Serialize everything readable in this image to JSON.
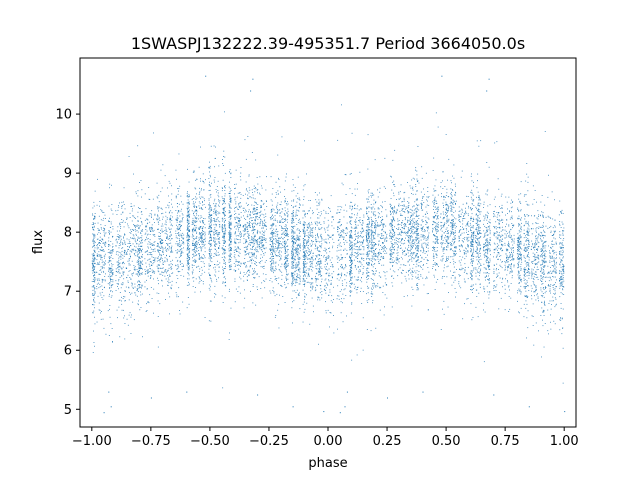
{
  "chart_data": {
    "type": "scatter",
    "title": "1SWASPJ132222.39-495351.7 Period 3664050.0s",
    "xlabel": "phase",
    "ylabel": "flux",
    "xlim": [
      -1.05,
      1.05
    ],
    "ylim": [
      4.7,
      10.95
    ],
    "x_ticks": [
      -1.0,
      -0.75,
      -0.5,
      -0.25,
      0.0,
      0.25,
      0.5,
      0.75,
      1.0
    ],
    "x_tick_labels": [
      "−1.00",
      "−0.75",
      "−0.50",
      "−0.25",
      "0.00",
      "0.25",
      "0.50",
      "0.75",
      "1.00"
    ],
    "y_ticks": [
      5,
      6,
      7,
      8,
      9,
      10
    ],
    "y_tick_labels": [
      "5",
      "6",
      "7",
      "8",
      "9",
      "10"
    ],
    "grid": false,
    "legend": "none",
    "series_color": "#1f77b4",
    "x_range": [
      -1.0,
      1.0
    ],
    "symmetric_about_phase_zero": true,
    "profile": [
      {
        "phase": 0.0,
        "median_flux": 7.55,
        "spread": 0.55
      },
      {
        "phase": 0.1,
        "median_flux": 7.7,
        "spread": 0.5
      },
      {
        "phase": 0.2,
        "median_flux": 7.85,
        "spread": 0.5
      },
      {
        "phase": 0.3,
        "median_flux": 7.95,
        "spread": 0.5
      },
      {
        "phase": 0.4,
        "median_flux": 8.0,
        "spread": 0.5
      },
      {
        "phase": 0.5,
        "median_flux": 8.05,
        "spread": 0.55
      },
      {
        "phase": 0.6,
        "median_flux": 7.9,
        "spread": 0.5
      },
      {
        "phase": 0.7,
        "median_flux": 7.8,
        "spread": 0.5
      },
      {
        "phase": 0.8,
        "median_flux": 7.65,
        "spread": 0.55
      },
      {
        "phase": 0.9,
        "median_flux": 7.55,
        "spread": 0.55
      },
      {
        "phase": 1.0,
        "median_flux": 7.5,
        "spread": 0.55
      }
    ],
    "outliers": [
      {
        "x": -0.52,
        "y": 10.65
      },
      {
        "x": 0.48,
        "y": 10.65
      },
      {
        "x": -0.32,
        "y": 10.6
      },
      {
        "x": -0.33,
        "y": 10.4
      },
      {
        "x": 0.68,
        "y": 10.6
      },
      {
        "x": 0.67,
        "y": 10.4
      },
      {
        "x": -0.93,
        "y": 5.3
      },
      {
        "x": -0.92,
        "y": 5.05
      },
      {
        "x": 0.08,
        "y": 5.3
      },
      {
        "x": 0.07,
        "y": 5.05
      },
      {
        "x": -0.95,
        "y": 4.95
      },
      {
        "x": 0.05,
        "y": 4.95
      },
      {
        "x": -0.15,
        "y": 5.05
      },
      {
        "x": 0.85,
        "y": 5.05
      },
      {
        "x": -0.6,
        "y": 5.3
      },
      {
        "x": 0.4,
        "y": 5.3
      },
      {
        "x": -0.3,
        "y": 5.25
      },
      {
        "x": 0.7,
        "y": 5.25
      },
      {
        "x": 1.0,
        "y": 4.97
      },
      {
        "x": -0.02,
        "y": 4.97
      },
      {
        "x": -0.75,
        "y": 5.2
      },
      {
        "x": 0.25,
        "y": 5.2
      }
    ]
  }
}
